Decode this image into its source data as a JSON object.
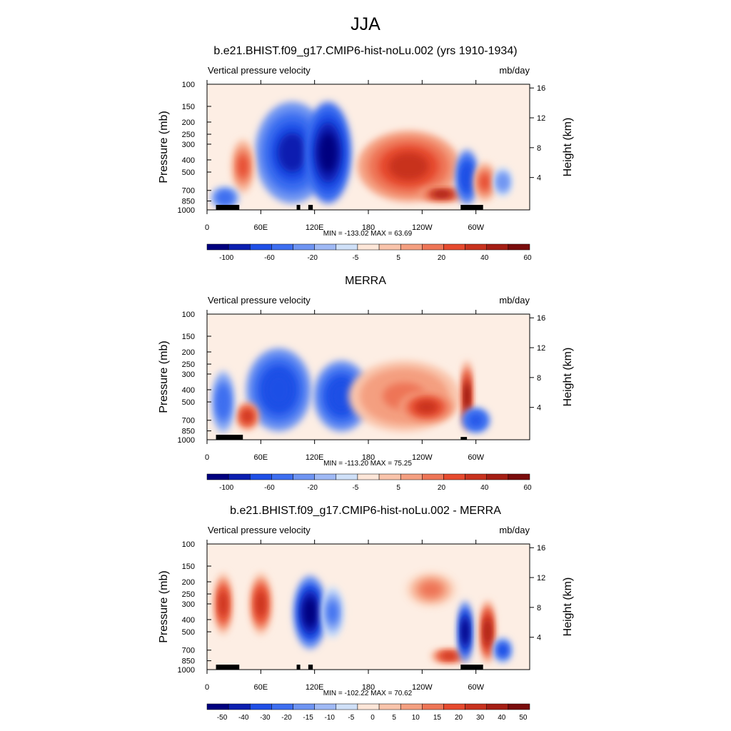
{
  "page_title": "JJA",
  "panels": [
    {
      "title": "b.e21.BHIST.f09_g17.CMIP6-hist-noLu.002 (yrs 1910-1934)",
      "left_label": "Vertical pressure velocity",
      "right_label": "mb/day",
      "stats": "MIN = -133.02  MAX =  63.69",
      "colorbar_labels": [
        "-100",
        "-60",
        "-20",
        "-5",
        "5",
        "20",
        "40",
        "60"
      ]
    },
    {
      "title": "MERRA",
      "left_label": "Vertical pressure velocity",
      "right_label": "mb/day",
      "stats": "MIN = -113.20  MAX =  75.25",
      "colorbar_labels": [
        "-100",
        "-60",
        "-20",
        "-5",
        "5",
        "20",
        "40",
        "60"
      ]
    },
    {
      "title": "b.e21.BHIST.f09_g17.CMIP6-hist-noLu.002 - MERRA",
      "left_label": "Vertical pressure velocity",
      "right_label": "mb/day",
      "stats": "MIN = -102.22  MAX =  70.62",
      "colorbar_labels": [
        "-50",
        "-40",
        "-30",
        "-20",
        "-15",
        "-10",
        "-5",
        "0",
        "5",
        "10",
        "15",
        "20",
        "30",
        "40",
        "50"
      ]
    }
  ],
  "axes": {
    "xlabel": "",
    "ylabel": "Pressure (mb)",
    "y2label": "Height (km)",
    "x_ticks": [
      "0",
      "60E",
      "120E",
      "180",
      "120W",
      "60W"
    ],
    "y_ticks": [
      "100",
      "150",
      "200",
      "250",
      "300",
      "400",
      "500",
      "700",
      "850",
      "1000"
    ],
    "y2_ticks": [
      "16",
      "12",
      "8",
      "4"
    ]
  },
  "colors": {
    "palette": [
      "#00007f",
      "#0b1fb0",
      "#1f4fe6",
      "#3d6ef0",
      "#6e94f2",
      "#9fb9f5",
      "#cfe0f8",
      "#fde6d8",
      "#f9c4ab",
      "#f49f80",
      "#ee7556",
      "#e64a2e",
      "#c8321e",
      "#a51e14",
      "#7a0c0c"
    ]
  },
  "chart_data": [
    {
      "type": "heatmap",
      "title": "b.e21.BHIST.f09_g17.CMIP6-hist-noLu.002 (yrs 1910-1934)",
      "x_range_deg_east": [
        0,
        360
      ],
      "y_range_mb": [
        100,
        1000
      ],
      "y_scale": "log",
      "levels": [
        -100,
        -80,
        -60,
        -40,
        -20,
        -10,
        -5,
        0,
        5,
        10,
        20,
        30,
        40,
        50,
        60
      ],
      "min": -133.02,
      "max": 63.69,
      "features": [
        {
          "lon": 95,
          "p": 350,
          "value": -80,
          "lon_width": 40,
          "p_depth": 500
        },
        {
          "lon": 135,
          "p": 350,
          "value": -85,
          "lon_width": 25,
          "p_depth": 500
        },
        {
          "lon": 225,
          "p": 450,
          "value": 40,
          "lon_width": 55,
          "p_depth": 500
        },
        {
          "lon": 262,
          "p": 750,
          "value": 55,
          "lon_width": 25,
          "p_depth": 200
        },
        {
          "lon": 40,
          "p": 450,
          "value": 30,
          "lon_width": 12,
          "p_depth": 400
        },
        {
          "lon": 20,
          "p": 800,
          "value": -40,
          "lon_width": 15,
          "p_depth": 300
        },
        {
          "lon": 290,
          "p": 550,
          "value": -60,
          "lon_width": 12,
          "p_depth": 500
        },
        {
          "lon": 310,
          "p": 600,
          "value": 30,
          "lon_width": 12,
          "p_depth": 400
        },
        {
          "lon": 330,
          "p": 600,
          "value": -20,
          "lon_width": 10,
          "p_depth": 300
        }
      ],
      "orography": [
        [
          10,
          850,
          32
        ],
        [
          28,
          770,
          36
        ],
        [
          100,
          900,
          104
        ],
        [
          113,
          900,
          118
        ],
        [
          283,
          870,
          308
        ]
      ]
    },
    {
      "type": "heatmap",
      "title": "MERRA",
      "x_range_deg_east": [
        0,
        360
      ],
      "y_range_mb": [
        100,
        1000
      ],
      "y_scale": "log",
      "levels": [
        -100,
        -80,
        -60,
        -40,
        -20,
        -10,
        -5,
        0,
        5,
        10,
        20,
        30,
        40,
        50,
        60
      ],
      "min": -113.2,
      "max": 75.25,
      "features": [
        {
          "lon": 80,
          "p": 400,
          "value": -60,
          "lon_width": 35,
          "p_depth": 500
        },
        {
          "lon": 150,
          "p": 450,
          "value": -55,
          "lon_width": 30,
          "p_depth": 500
        },
        {
          "lon": 220,
          "p": 450,
          "value": 25,
          "lon_width": 60,
          "p_depth": 500
        },
        {
          "lon": 245,
          "p": 550,
          "value": 40,
          "lon_width": 30,
          "p_depth": 300
        },
        {
          "lon": 45,
          "p": 650,
          "value": 45,
          "lon_width": 12,
          "p_depth": 300
        },
        {
          "lon": 18,
          "p": 500,
          "value": -30,
          "lon_width": 12,
          "p_depth": 500
        },
        {
          "lon": 290,
          "p": 450,
          "value": 60,
          "lon_width": 6,
          "p_depth": 500
        },
        {
          "lon": 300,
          "p": 700,
          "value": -50,
          "lon_width": 15,
          "p_depth": 300
        }
      ],
      "orography": [
        [
          10,
          900,
          40
        ],
        [
          283,
          950,
          290
        ]
      ]
    },
    {
      "type": "heatmap",
      "title": "b.e21.BHIST.f09_g17.CMIP6-hist-noLu.002 - MERRA",
      "x_range_deg_east": [
        0,
        360
      ],
      "y_range_mb": [
        100,
        1000
      ],
      "y_scale": "log",
      "levels": [
        -50,
        -40,
        -30,
        -20,
        -15,
        -10,
        -5,
        0,
        5,
        10,
        15,
        20,
        30,
        40,
        50
      ],
      "min": -102.22,
      "max": 70.62,
      "features": [
        {
          "lon": 18,
          "p": 300,
          "value": 30,
          "lon_width": 10,
          "p_depth": 300
        },
        {
          "lon": 60,
          "p": 300,
          "value": 35,
          "lon_width": 12,
          "p_depth": 300
        },
        {
          "lon": 115,
          "p": 350,
          "value": -45,
          "lon_width": 18,
          "p_depth": 400
        },
        {
          "lon": 140,
          "p": 350,
          "value": -20,
          "lon_width": 12,
          "p_depth": 300
        },
        {
          "lon": 270,
          "p": 780,
          "value": 30,
          "lon_width": 20,
          "p_depth": 200
        },
        {
          "lon": 250,
          "p": 230,
          "value": 15,
          "lon_width": 30,
          "p_depth": 150
        },
        {
          "lon": 288,
          "p": 500,
          "value": -45,
          "lon_width": 8,
          "p_depth": 500
        },
        {
          "lon": 313,
          "p": 500,
          "value": 40,
          "lon_width": 8,
          "p_depth": 500
        },
        {
          "lon": 330,
          "p": 700,
          "value": -30,
          "lon_width": 10,
          "p_depth": 300
        }
      ],
      "orography": [
        [
          10,
          850,
          32
        ],
        [
          28,
          770,
          36
        ],
        [
          100,
          900,
          104
        ],
        [
          113,
          900,
          118
        ],
        [
          283,
          870,
          308
        ]
      ]
    }
  ]
}
